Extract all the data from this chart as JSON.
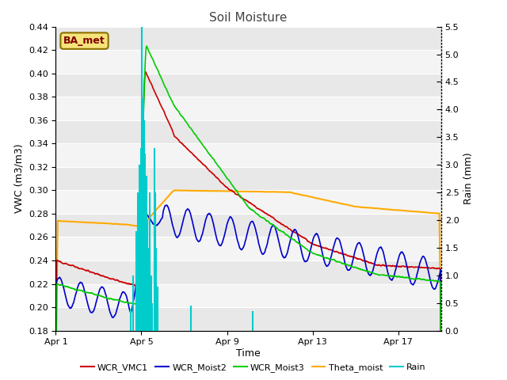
{
  "title": "Soil Moisture",
  "xlabel": "Time",
  "ylabel_left": "VWC (m3/m3)",
  "ylabel_right": "Rain (mm)",
  "ylim_left": [
    0.18,
    0.44
  ],
  "ylim_right": [
    0.0,
    5.5
  ],
  "yticks_left": [
    0.18,
    0.2,
    0.22,
    0.24,
    0.26,
    0.28,
    0.3,
    0.32,
    0.34,
    0.36,
    0.38,
    0.4,
    0.42,
    0.44
  ],
  "yticks_right": [
    0.0,
    0.5,
    1.0,
    1.5,
    2.0,
    2.5,
    3.0,
    3.5,
    4.0,
    4.5,
    5.0,
    5.5
  ],
  "xlim": [
    0,
    18
  ],
  "xtick_positions": [
    0,
    4,
    8,
    12,
    16
  ],
  "xtick_labels": [
    "Apr 1",
    "Apr 5",
    "Apr 9",
    "Apr 13",
    "Apr 17"
  ],
  "legend_labels": [
    "WCR_VMC1",
    "WCR_Moist2",
    "WCR_Moist3",
    "Theta_moist",
    "Rain"
  ],
  "legend_colors": [
    "#cc0000",
    "#0000cc",
    "#00cc00",
    "#ffaa00",
    "#00cccc"
  ],
  "bg_dark": "#e8e8e8",
  "bg_light": "#f4f4f4",
  "box_label": "BA_met",
  "box_facecolor": "#f5e47a",
  "box_edgecolor": "#8b7000",
  "box_textcolor": "#800000",
  "grid_color": "#ffffff",
  "rain_color": "#00cccc"
}
